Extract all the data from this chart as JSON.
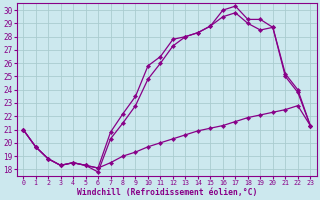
{
  "xlabel": "Windchill (Refroidissement éolien,°C)",
  "bg_color": "#cce8ee",
  "line_color": "#880088",
  "grid_color": "#aaccd0",
  "xlim": [
    -0.5,
    23.5
  ],
  "ylim": [
    17.5,
    30.5
  ],
  "xticks": [
    0,
    1,
    2,
    3,
    4,
    5,
    6,
    7,
    8,
    9,
    10,
    11,
    12,
    13,
    14,
    15,
    16,
    17,
    18,
    19,
    20,
    21,
    22,
    23
  ],
  "yticks": [
    18,
    19,
    20,
    21,
    22,
    23,
    24,
    25,
    26,
    27,
    28,
    29,
    30
  ],
  "line1_x": [
    0,
    1,
    2,
    3,
    4,
    5,
    6,
    7,
    8,
    9,
    10,
    11,
    12,
    13,
    14,
    15,
    16,
    17,
    18,
    19,
    20,
    21,
    22,
    23
  ],
  "line1_y": [
    21.0,
    19.7,
    18.8,
    18.3,
    18.5,
    18.3,
    18.1,
    18.5,
    19.0,
    19.3,
    19.7,
    20.0,
    20.3,
    20.6,
    20.9,
    21.1,
    21.3,
    21.6,
    21.9,
    22.1,
    22.3,
    22.5,
    22.8,
    21.3
  ],
  "line2_x": [
    0,
    1,
    2,
    3,
    4,
    5,
    6,
    7,
    8,
    9,
    10,
    11,
    12,
    13,
    14,
    15,
    16,
    17,
    18,
    19,
    20,
    21,
    22,
    23
  ],
  "line2_y": [
    21.0,
    19.7,
    18.8,
    18.3,
    18.5,
    18.3,
    18.1,
    20.8,
    22.2,
    23.5,
    25.8,
    26.5,
    27.8,
    28.0,
    28.3,
    28.8,
    30.0,
    30.3,
    29.3,
    29.3,
    28.7,
    25.2,
    24.0,
    21.3
  ],
  "line3_x": [
    0,
    1,
    2,
    3,
    4,
    5,
    6,
    7,
    8,
    9,
    10,
    11,
    12,
    13,
    14,
    15,
    16,
    17,
    18,
    19,
    20,
    21,
    22,
    23
  ],
  "line3_y": [
    21.0,
    19.7,
    18.8,
    18.3,
    18.5,
    18.3,
    17.8,
    20.3,
    21.5,
    22.8,
    24.8,
    26.0,
    27.3,
    28.0,
    28.3,
    28.8,
    29.5,
    29.8,
    29.0,
    28.5,
    28.7,
    25.0,
    23.8,
    21.3
  ]
}
